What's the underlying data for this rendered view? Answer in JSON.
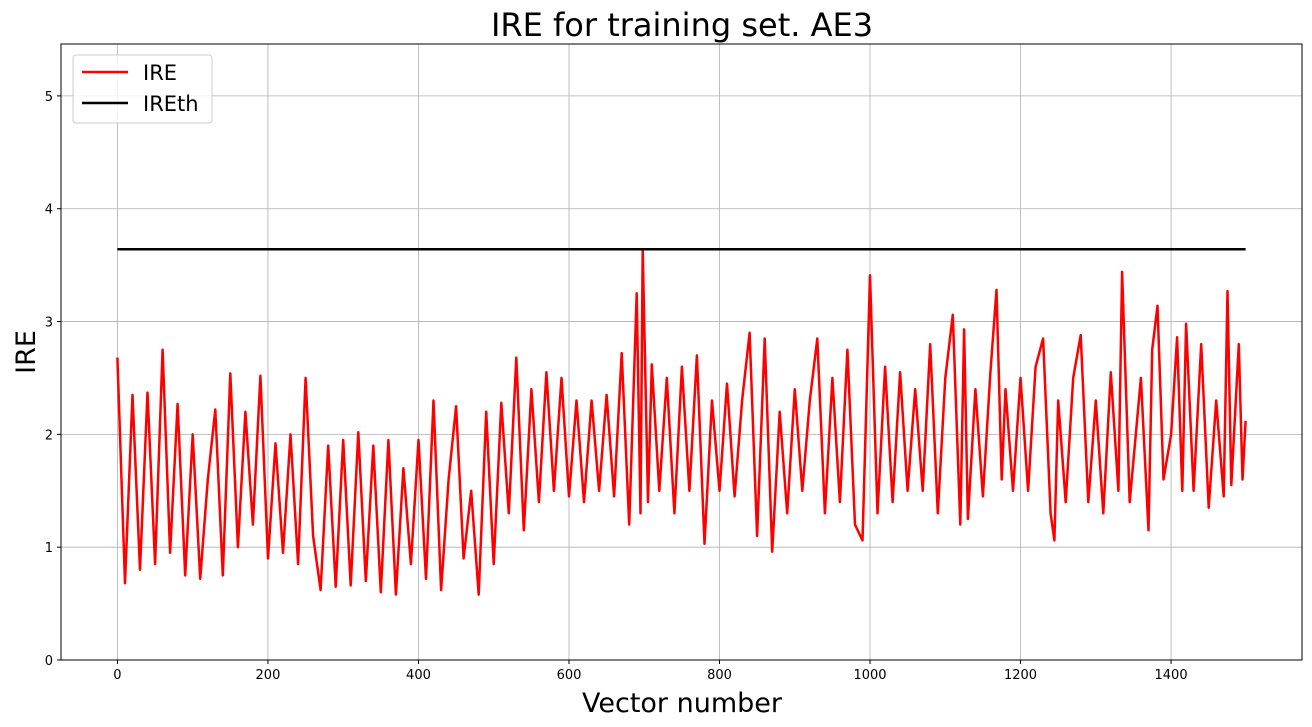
{
  "chart_data": {
    "type": "line",
    "title": "IRE for training set. AE3",
    "xlabel": "Vector number",
    "ylabel": "IRE",
    "xlim": [
      -75,
      1574
    ],
    "ylim": [
      0,
      5.46
    ],
    "xticks": [
      0,
      200,
      400,
      600,
      800,
      1000,
      1200,
      1400
    ],
    "yticks": [
      0,
      1,
      2,
      3,
      4,
      5
    ],
    "grid": true,
    "legend": "top-left",
    "series": [
      {
        "name": "IRE",
        "color": "#ff0000",
        "x": [
          0,
          10,
          20,
          30,
          40,
          50,
          60,
          70,
          80,
          90,
          100,
          110,
          120,
          130,
          140,
          150,
          160,
          170,
          180,
          190,
          200,
          210,
          220,
          230,
          240,
          250,
          260,
          270,
          280,
          290,
          300,
          310,
          320,
          330,
          340,
          350,
          360,
          370,
          380,
          390,
          400,
          410,
          420,
          430,
          440,
          450,
          460,
          470,
          480,
          490,
          500,
          510,
          520,
          530,
          540,
          550,
          560,
          570,
          580,
          590,
          600,
          610,
          620,
          630,
          640,
          650,
          660,
          670,
          680,
          690,
          695,
          698,
          705,
          710,
          720,
          730,
          740,
          750,
          760,
          770,
          780,
          790,
          800,
          810,
          820,
          830,
          840,
          850,
          860,
          870,
          880,
          890,
          900,
          910,
          920,
          930,
          940,
          950,
          960,
          970,
          980,
          990,
          1000,
          1010,
          1020,
          1030,
          1040,
          1050,
          1060,
          1070,
          1080,
          1090,
          1100,
          1110,
          1120,
          1125,
          1130,
          1140,
          1150,
          1160,
          1168,
          1175,
          1180,
          1190,
          1200,
          1210,
          1220,
          1230,
          1240,
          1245,
          1250,
          1260,
          1270,
          1280,
          1290,
          1300,
          1310,
          1320,
          1330,
          1335,
          1345,
          1360,
          1370,
          1375,
          1382,
          1390,
          1400,
          1408,
          1415,
          1420,
          1430,
          1440,
          1450,
          1460,
          1470,
          1475,
          1480,
          1490,
          1495,
          1499
        ],
        "y": [
          2.68,
          0.68,
          2.35,
          0.8,
          2.37,
          0.85,
          2.75,
          0.95,
          2.27,
          0.75,
          2.0,
          0.72,
          1.6,
          2.22,
          0.75,
          2.54,
          1.0,
          2.2,
          1.2,
          2.52,
          0.9,
          1.92,
          0.95,
          2.0,
          0.85,
          2.5,
          1.1,
          0.62,
          1.9,
          0.65,
          1.95,
          0.66,
          2.02,
          0.7,
          1.9,
          0.6,
          1.95,
          0.58,
          1.7,
          0.85,
          1.95,
          0.72,
          2.3,
          0.62,
          1.6,
          2.25,
          0.9,
          1.5,
          0.58,
          2.2,
          0.85,
          2.28,
          1.3,
          2.68,
          1.15,
          2.4,
          1.4,
          2.55,
          1.5,
          2.5,
          1.45,
          2.3,
          1.4,
          2.3,
          1.5,
          2.35,
          1.45,
          2.72,
          1.2,
          3.25,
          1.3,
          3.64,
          1.4,
          2.62,
          1.5,
          2.5,
          1.3,
          2.6,
          1.5,
          2.7,
          1.03,
          2.3,
          1.5,
          2.45,
          1.45,
          2.3,
          2.9,
          1.1,
          2.85,
          0.96,
          2.2,
          1.3,
          2.4,
          1.5,
          2.3,
          2.85,
          1.3,
          2.5,
          1.4,
          2.75,
          1.2,
          1.06,
          3.41,
          1.3,
          2.6,
          1.4,
          2.55,
          1.5,
          2.4,
          1.5,
          2.8,
          1.3,
          2.5,
          3.06,
          1.2,
          2.93,
          1.25,
          2.4,
          1.45,
          2.55,
          3.28,
          1.6,
          2.4,
          1.5,
          2.5,
          1.5,
          2.6,
          2.85,
          1.3,
          1.06,
          2.3,
          1.4,
          2.5,
          2.88,
          1.4,
          2.3,
          1.3,
          2.55,
          1.5,
          3.44,
          1.4,
          2.5,
          1.15,
          2.75,
          3.14,
          1.6,
          2.0,
          2.86,
          1.5,
          2.98,
          1.5,
          2.8,
          1.35,
          2.3,
          1.45,
          3.27,
          1.55,
          2.8,
          1.6,
          2.12
        ]
      },
      {
        "name": "IREth",
        "color": "#000000",
        "x": [
          0,
          1499
        ],
        "y": [
          3.64,
          3.64
        ]
      }
    ]
  }
}
